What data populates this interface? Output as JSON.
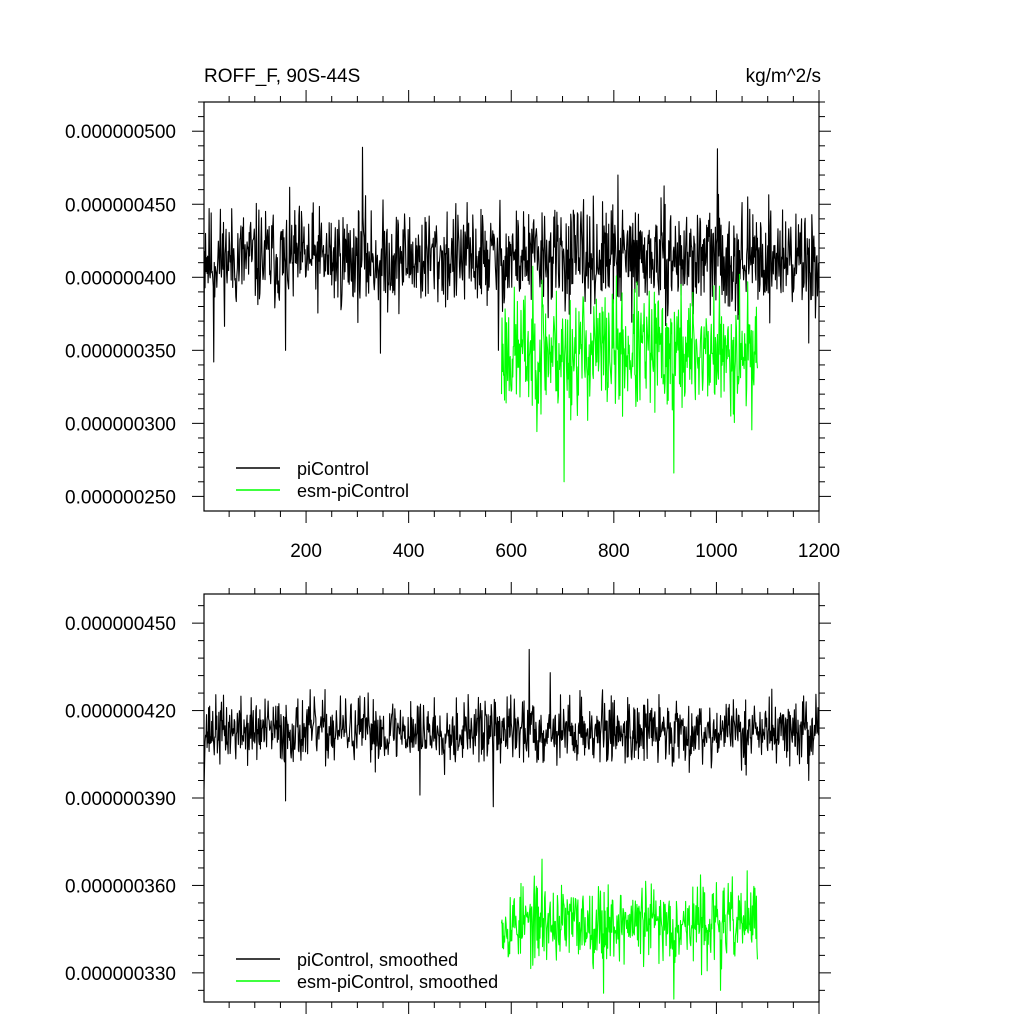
{
  "chart_data": [
    {
      "type": "line",
      "title": "ROFF_F, 90S-44S",
      "units": "kg/m^2/s",
      "xlim": [
        1,
        1200
      ],
      "ylim": [
        2.4e-07,
        5.2e-07
      ],
      "xticks": [
        200,
        400,
        600,
        800,
        1000,
        1200
      ],
      "xtick_labels": [
        "200",
        "400",
        "600",
        "800",
        "1000",
        "1200"
      ],
      "yticks": [
        2.5e-07,
        3e-07,
        3.5e-07,
        4e-07,
        4.5e-07,
        5e-07
      ],
      "ytick_labels": [
        "0.000000250",
        "0.000000300",
        "0.000000350",
        "0.000000400",
        "0.000000450",
        "0.000000500"
      ],
      "legend_position": "bottom-left",
      "series": [
        {
          "name": "piControl",
          "color": "#000000",
          "x_start": 1,
          "x_end": 1200,
          "mean": 4.13e-07,
          "spread": 1.7e-08,
          "seed": 11,
          "key_points": [
            [
              1,
              3.58e-07
            ],
            [
              4,
              4.3e-07
            ],
            [
              20,
              3.42e-07
            ],
            [
              160,
              3.5e-07
            ],
            [
              310,
              4.89e-07
            ],
            [
              345,
              3.48e-07
            ],
            [
              575,
              3.5e-07
            ],
            [
              808,
              4.7e-07
            ],
            [
              1002,
              4.88e-07
            ],
            [
              1180,
              3.55e-07
            ]
          ]
        },
        {
          "name": "esm-piControl",
          "color": "#00ff00",
          "x_start": 581,
          "x_end": 1080,
          "mean": 3.49e-07,
          "spread": 2.1e-08,
          "seed": 23,
          "key_points": [
            [
              581,
              3.2e-07
            ],
            [
              660,
              3.98e-07
            ],
            [
              703,
              2.6e-07
            ],
            [
              917,
              2.66e-07
            ],
            [
              1015,
              3.22e-07
            ],
            [
              1045,
              4.02e-07
            ]
          ]
        }
      ]
    },
    {
      "type": "line",
      "xlim": [
        1,
        1200
      ],
      "ylim": [
        3.2e-07,
        4.6e-07
      ],
      "xticks": [
        200,
        400,
        600,
        800,
        1000,
        1200
      ],
      "yticks": [
        3.3e-07,
        3.6e-07,
        3.9e-07,
        4.2e-07,
        4.5e-07
      ],
      "ytick_labels": [
        "0.000000330",
        "0.000000360",
        "0.000000390",
        "0.000000420",
        "0.000000450"
      ],
      "legend_position": "bottom-left",
      "series": [
        {
          "name": "piControl, smoothed",
          "color": "#000000",
          "x_start": 1,
          "x_end": 1200,
          "mean": 4.13e-07,
          "spread": 5.5e-09,
          "seed": 37,
          "key_points": [
            [
              1,
              3.93e-07
            ],
            [
              10,
              4.21e-07
            ],
            [
              160,
              3.89e-07
            ],
            [
              422,
              3.91e-07
            ],
            [
              565,
              3.87e-07
            ],
            [
              635,
              4.41e-07
            ],
            [
              676,
              4.33e-07
            ],
            [
              1180,
              3.96e-07
            ]
          ]
        },
        {
          "name": "esm-piControl, smoothed",
          "color": "#00ff00",
          "x_start": 581,
          "x_end": 1080,
          "mean": 3.47e-07,
          "spread": 6.5e-09,
          "seed": 53,
          "key_points": [
            [
              581,
              3.47e-07
            ],
            [
              660,
              3.69e-07
            ],
            [
              780,
              3.23e-07
            ],
            [
              917,
              3.21e-07
            ],
            [
              1008,
              3.24e-07
            ],
            [
              1060,
              3.65e-07
            ]
          ]
        }
      ]
    }
  ]
}
